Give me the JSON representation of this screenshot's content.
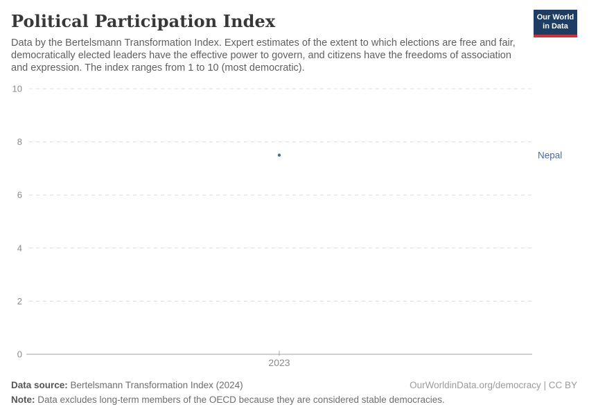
{
  "header": {
    "title": "Political Participation Index",
    "subtitle": "Data by the Bertelsmann Transformation Index. Expert estimates of the extent to which elections are free and fair, democratically elected leaders have the effective power to govern, and citizens have the freedoms of association and expression. The index ranges from 1 to 10 (most democratic).",
    "logo": {
      "line1": "Our World",
      "line2": "in Data",
      "bg_color": "#1d3d63",
      "accent_color": "#c5353b"
    }
  },
  "chart_data": {
    "type": "scatter",
    "series": [
      {
        "name": "Nepal",
        "x": [
          2023
        ],
        "values": [
          7.5
        ],
        "color": "#4c6a9c"
      }
    ],
    "categories": [
      2023
    ],
    "x_tick_labels": [
      "2023"
    ],
    "y_ticks": [
      0,
      2,
      4,
      6,
      8,
      10
    ],
    "ylim": [
      0,
      10
    ],
    "title": "Political Participation Index",
    "xlabel": "",
    "ylabel": "",
    "grid": "horizontal-dashed",
    "legend_position": "right-entity-label",
    "entity_labels": [
      "Nepal"
    ],
    "axis_color": "#a3a3a3",
    "gridline_color": "#dcdcdc",
    "tick_label_color": "#8a8a8a"
  },
  "footer": {
    "source_label": "Data source:",
    "source_text": " Bertelsmann Transformation Index (2024)",
    "link_text": "OurWorldinData.org/democracy | CC BY",
    "note_label": "Note:",
    "note_text": " Data excludes long-term members of the OECD because they are considered stable democracies."
  }
}
